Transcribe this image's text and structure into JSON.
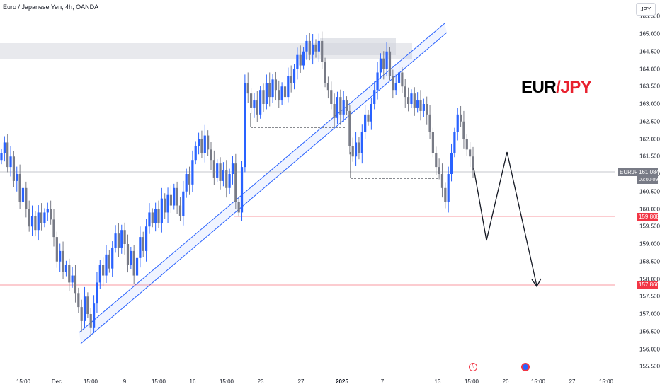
{
  "header": {
    "title": "Euro / Japanese Yen, 4h, OANDA",
    "currency_button": "JPY"
  },
  "pair_label": {
    "base": "EUR",
    "separator": "/",
    "quote": "JPY"
  },
  "price_tags": {
    "symbol": "EURJPY",
    "last_price": "161.084",
    "countdown": "02:00:09",
    "level_1": "159.808",
    "level_2": "157.866"
  },
  "colors": {
    "up": "#2962ff",
    "down": "#787b86",
    "level_line": "#f23645",
    "channel": "#2962ff",
    "zone": "#d1d4dc"
  },
  "icons": {
    "event_1": "lightning-icon",
    "event_2": "flag-icon"
  },
  "chart_data": {
    "type": "candlestick",
    "title": "Euro / Japanese Yen, 4h, OANDA",
    "ylim": [
      155.1,
      165.85
    ],
    "price_ticks": [
      "165.500",
      "165.000",
      "164.500",
      "164.000",
      "163.500",
      "163.000",
      "162.500",
      "162.000",
      "161.500",
      "161.000",
      "160.500",
      "160.000",
      "159.500",
      "159.000",
      "158.500",
      "158.000",
      "157.500",
      "157.000",
      "156.500",
      "156.000",
      "155.500"
    ],
    "time_ticks": [
      {
        "label": "15:00",
        "bold": false
      },
      {
        "label": "Dec",
        "bold": false
      },
      {
        "label": "15:00",
        "bold": false
      },
      {
        "label": "9",
        "bold": false
      },
      {
        "label": "15:00",
        "bold": false
      },
      {
        "label": "16",
        "bold": false
      },
      {
        "label": "15:00",
        "bold": false
      },
      {
        "label": "23",
        "bold": false
      },
      {
        "label": "27",
        "bold": false
      },
      {
        "label": "2025",
        "bold": true
      },
      {
        "label": "7",
        "bold": false
      },
      {
        "label": "13",
        "bold": false
      },
      {
        "label": "15:00",
        "bold": false
      },
      {
        "label": "20",
        "bold": false
      },
      {
        "label": "15:00",
        "bold": false
      },
      {
        "label": "27",
        "bold": false
      },
      {
        "label": "15:00",
        "bold": false
      }
    ],
    "series_close": [
      161.6,
      161.9,
      161.2,
      161.5,
      160.8,
      161.0,
      160.2,
      160.6,
      160.0,
      159.5,
      159.8,
      159.4,
      159.9,
      159.6,
      159.9,
      160.0,
      159.7,
      159.2,
      158.5,
      158.8,
      158.2,
      158.4,
      157.9,
      158.1,
      157.6,
      157.2,
      156.8,
      157.5,
      157.0,
      156.6,
      157.3,
      157.9,
      158.4,
      158.1,
      158.7,
      158.3,
      158.9,
      159.3,
      158.9,
      159.4,
      159.0,
      158.4,
      158.8,
      158.1,
      158.6,
      159.2,
      158.8,
      159.5,
      159.9,
      159.6,
      160.0,
      159.6,
      160.3,
      159.9,
      160.4,
      160.1,
      160.6,
      160.1,
      159.8,
      160.5,
      161.0,
      160.7,
      161.4,
      161.8,
      162.0,
      161.6,
      162.1,
      161.7,
      161.4,
      160.9,
      161.3,
      160.8,
      161.1,
      160.6,
      161.0,
      161.3,
      160.2,
      159.9,
      161.2,
      163.6,
      163.3,
      162.9,
      163.1,
      162.7,
      163.4,
      163.0,
      163.6,
      163.2,
      163.7,
      163.4,
      163.1,
      163.5,
      163.2,
      163.8,
      163.6,
      164.0,
      164.4,
      164.1,
      164.5,
      164.8,
      164.4,
      164.7,
      164.5,
      164.8,
      164.2,
      163.6,
      163.4,
      163.0,
      162.6,
      163.2,
      162.7,
      163.1,
      162.8,
      161.8,
      161.5,
      161.9,
      161.6,
      162.2,
      162.7,
      162.5,
      163.0,
      163.4,
      163.9,
      164.3,
      164.0,
      164.5,
      163.8,
      163.4,
      163.6,
      163.9,
      163.5,
      163.2,
      163.0,
      163.3,
      162.9,
      163.1,
      162.8,
      163.0,
      162.7,
      162.2,
      161.6,
      161.2,
      161.0,
      160.6,
      160.2,
      161.0,
      161.6,
      162.2,
      162.7,
      162.5,
      162.0,
      161.7,
      161.5,
      161.1
    ]
  }
}
